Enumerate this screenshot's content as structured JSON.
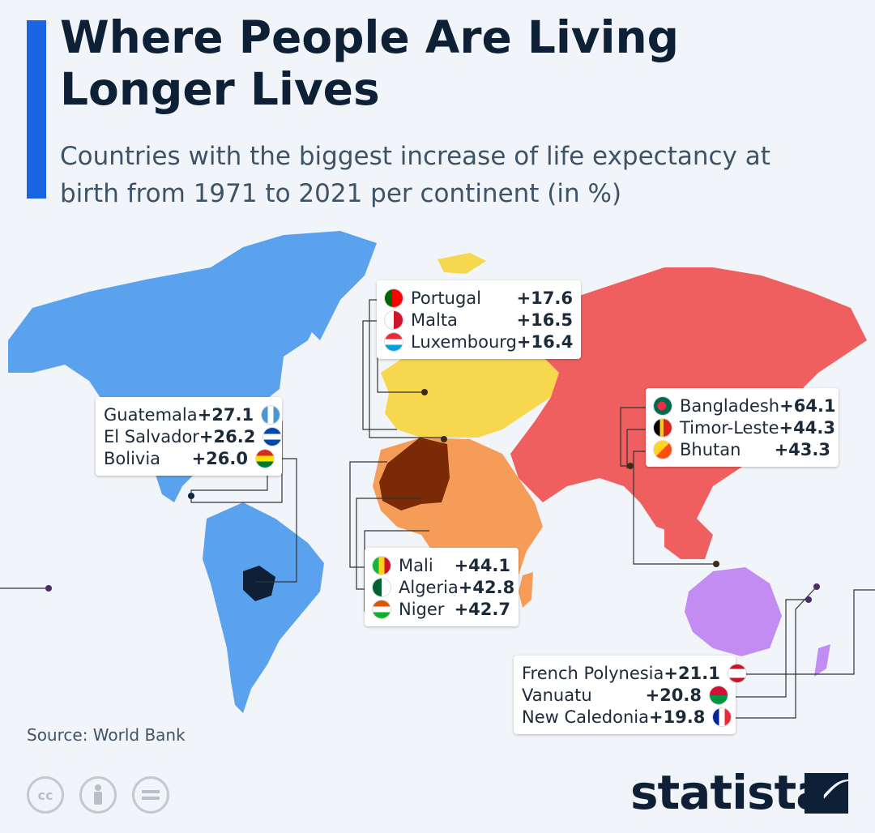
{
  "title": "Where People Are Living Longer Lives",
  "subtitle": "Countries with the biggest increase of life expectancy at birth from 1971 to 2021 per continent (in %)",
  "source": "Source: World Bank",
  "brand": "statista",
  "license_icons": [
    "creative-commons-icon",
    "attribution-icon",
    "no-derivatives-icon"
  ],
  "continent_colors": {
    "north_america": "#5aa2ee",
    "europe": "#f6d74e",
    "africa": "#f59d58",
    "asia": "#ef5f5f",
    "oceania": "#c38cf2",
    "highlight_africa": "#7a2b05",
    "highlight_america": "#0d2036"
  },
  "groups": {
    "americas": [
      {
        "country": "Guatemala",
        "value": "+27.1"
      },
      {
        "country": "El Salvador",
        "value": "+26.2"
      },
      {
        "country": "Bolivia",
        "value": "+26.0"
      }
    ],
    "europe": [
      {
        "country": "Portugal",
        "value": "+17.6"
      },
      {
        "country": "Malta",
        "value": "+16.5"
      },
      {
        "country": "Luxembourg",
        "value": "+16.4"
      }
    ],
    "asia": [
      {
        "country": "Bangladesh",
        "value": "+64.1"
      },
      {
        "country": "Timor-Leste",
        "value": "+44.3"
      },
      {
        "country": "Bhutan",
        "value": "+43.3"
      }
    ],
    "africa": [
      {
        "country": "Mali",
        "value": "+44.1"
      },
      {
        "country": "Algeria",
        "value": "+42.8"
      },
      {
        "country": "Niger",
        "value": "+42.7"
      }
    ],
    "oceania": [
      {
        "country": "French Polynesia",
        "value": "+21.1"
      },
      {
        "country": "Vanuatu",
        "value": "+20.8"
      },
      {
        "country": "New Caledonia",
        "value": "+19.8"
      }
    ]
  }
}
